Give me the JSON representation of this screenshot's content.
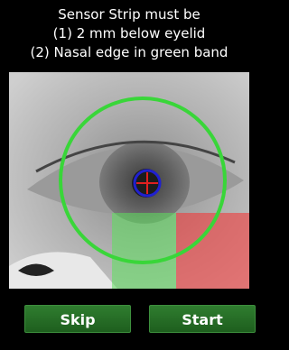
{
  "instructions": [
    "Sensor Strip must be",
    "(1) 2 mm below eyelid",
    "(2) Nasal edge in green band"
  ],
  "buttons": [
    {
      "label": "Skip"
    },
    {
      "label": "Start"
    }
  ]
}
